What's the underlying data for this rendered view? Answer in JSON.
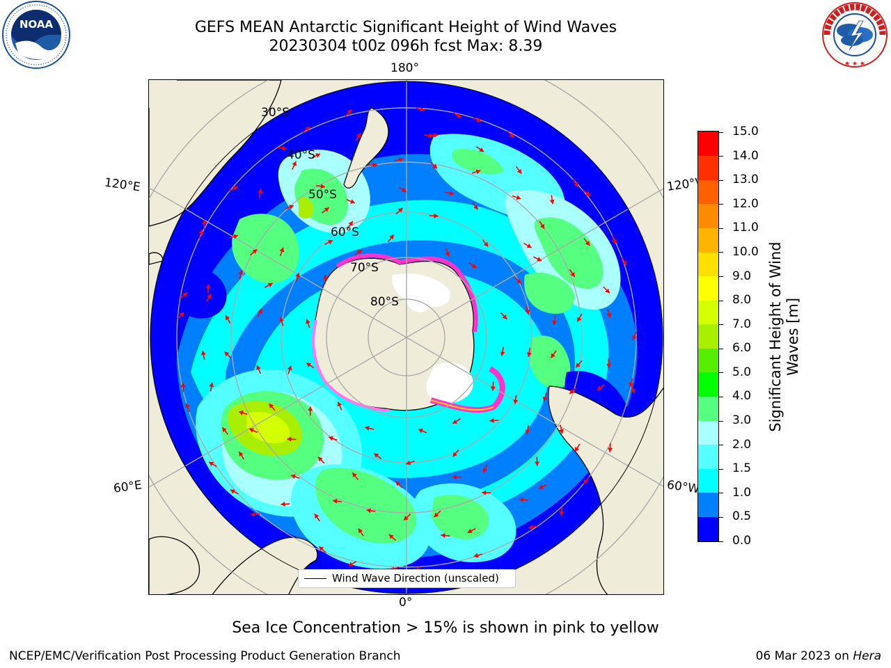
{
  "header": {
    "title_line1": "GEFS MEAN Antarctic Significant Height of Wind Waves",
    "title_line2": "20230304 t00z 096h fcst   Max: 8.39"
  },
  "logos": {
    "left": {
      "name": "NOAA",
      "ring_text": "NATIONAL OCEANIC AND ATMOSPHERIC ADMINISTRATION · U.S. DEPARTMENT OF COMMERCE"
    },
    "right": {
      "name": "NATIONAL WEATHER SERVICE"
    }
  },
  "map": {
    "projection": "south-polar-stereographic",
    "lon_labels": {
      "top": "180°",
      "bottom": "0°",
      "upper_left": "120°E",
      "lower_left": "60°E",
      "upper_right": "120°W",
      "lower_right": "60°W"
    },
    "lat_labels": [
      "30°S",
      "40°S",
      "50°S",
      "60°S",
      "70°S",
      "80°S"
    ],
    "legend": {
      "line_label": "Wind Wave Direction (unscaled)",
      "line_color": "#000000"
    },
    "arrow_color": "#ff0000",
    "sea_ice_colors": [
      "#ff33cc",
      "#ff77ee",
      "#ffd700"
    ],
    "land_color": "#efedd9",
    "antarctica_ice_color": "#ffffff",
    "coastline_color": "#000000"
  },
  "colorbar": {
    "label": "Significant Height of Wind Waves [m]",
    "label_lines": [
      "Significant Height of Wind",
      "Waves [m]"
    ],
    "ticks": [
      "0.0",
      "0.5",
      "1.0",
      "1.5",
      "2.0",
      "3.0",
      "4.0",
      "5.0",
      "6.0",
      "7.0",
      "8.0",
      "9.0",
      "10.0",
      "11.0",
      "12.0",
      "13.0",
      "14.0",
      "15.0"
    ],
    "colors": [
      "#0000ff",
      "#0080ff",
      "#00ffff",
      "#55ffff",
      "#aaffff",
      "#55ff80",
      "#00ff00",
      "#55ee00",
      "#aaee00",
      "#d4ff00",
      "#ffff00",
      "#ffe000",
      "#ffb400",
      "#ff8c00",
      "#ff6000",
      "#ff3000",
      "#ff0000"
    ]
  },
  "chart_data": {
    "type": "heatmap",
    "title": "GEFS MEAN Antarctic Significant Height of Wind Waves",
    "subtitle": "20230304 t00z 096h fcst   Max: 8.39",
    "variable": "Significant Height of Wind Waves [m]",
    "run": "20230304 t00z",
    "forecast_hour": "096h",
    "max": 8.39,
    "units": "m",
    "scale_range": [
      0.0,
      15.0
    ]
  },
  "notes": {
    "sea_ice": "Sea Ice Concentration > 15% is shown in pink to yellow"
  },
  "footer": {
    "left": "NCEP/EMC/Verification Post Processing Product Generation Branch",
    "date": "06 Mar 2023",
    "on_word": "on",
    "host": "Hera"
  }
}
